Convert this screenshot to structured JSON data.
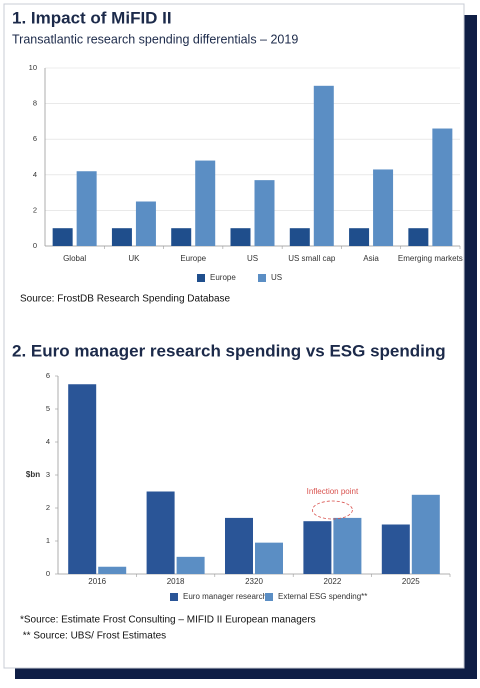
{
  "chart_data": [
    {
      "type": "bar",
      "title": "1. Impact of MiFID II",
      "subtitle": "Transatlantic research spending differentials – 2019",
      "categories": [
        "Global",
        "UK",
        "Europe",
        "US",
        "US small cap",
        "Asia",
        "Emerging markets"
      ],
      "series": [
        {
          "name": "Europe",
          "color": "#1f4e8c",
          "values": [
            1,
            1,
            1,
            1,
            1,
            1,
            1
          ]
        },
        {
          "name": "US",
          "color": "#5b8ec4",
          "values": [
            4.2,
            2.5,
            4.8,
            3.7,
            9.0,
            4.3,
            6.6
          ]
        }
      ],
      "ylim": [
        0,
        10
      ],
      "yticks": [
        0,
        2,
        4,
        6,
        8,
        10
      ],
      "grid": true,
      "sources": [
        "Source: FrostDB Research Spending Database"
      ]
    },
    {
      "type": "bar",
      "title": "2. Euro manager research spending vs ESG spending",
      "ylabel": "$bn",
      "categories": [
        "2016",
        "2018",
        "2320",
        "2022",
        "2025"
      ],
      "series": [
        {
          "name": "Euro manager research*",
          "color": "#2a5597",
          "values": [
            5.75,
            2.5,
            1.7,
            1.6,
            1.5
          ]
        },
        {
          "name": "External ESG spending**",
          "color": "#5b8ec4",
          "values": [
            0.22,
            0.52,
            0.95,
            1.7,
            2.4
          ]
        }
      ],
      "ylim": [
        0,
        6
      ],
      "yticks": [
        0,
        1,
        2,
        3,
        4,
        5,
        6
      ],
      "grid": false,
      "annotation": "Inflection point",
      "sources": [
        "*Source: Estimate Frost Consulting – MIFID II European managers",
        " ** Source: UBS/ Frost Estimates"
      ]
    }
  ]
}
